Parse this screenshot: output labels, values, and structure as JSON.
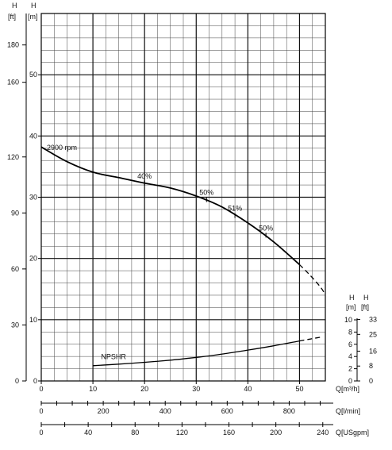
{
  "chart_data": {
    "type": "line",
    "speed_label": "2900 rpm",
    "npsh_label": "NPSHR",
    "axes": {
      "x_primary": {
        "unit": "Q[m³/h]",
        "range": [
          0,
          55
        ],
        "ticks": [
          "0",
          "10",
          "20",
          "30",
          "40",
          "50"
        ]
      },
      "x_lpm": {
        "unit": "Q[l/min]",
        "ticks": [
          "0",
          "200",
          "400",
          "600",
          "800"
        ]
      },
      "x_usgpm": {
        "unit": "Q[USgpm]",
        "ticks": [
          "0",
          "40",
          "80",
          "120",
          "160",
          "200",
          "240"
        ]
      },
      "y_head_m": {
        "unit_top": "H",
        "unit_bottom": "[m]",
        "range": [
          0,
          60
        ],
        "ticks": [
          "0",
          "10",
          "20",
          "30",
          "40",
          "50"
        ]
      },
      "y_head_ft": {
        "unit_top": "H",
        "unit_bottom": "[ft]",
        "ticks": [
          "0",
          "30",
          "60",
          "90",
          "120",
          "160",
          "180"
        ]
      },
      "y_npsh_m": {
        "unit_top": "H",
        "unit_bottom": "[m]",
        "range": [
          0,
          10
        ],
        "ticks": [
          "0",
          "2",
          "4",
          "6",
          "8",
          "10"
        ]
      },
      "y_npsh_ft": {
        "unit_top": "H",
        "unit_bottom": "[ft]",
        "ticks": [
          "0",
          "8",
          "16",
          "25",
          "33"
        ]
      }
    },
    "series": [
      {
        "role": "head",
        "x": [
          0,
          5,
          10,
          15,
          20,
          25,
          30,
          35,
          40,
          45,
          50
        ],
        "y": [
          38.2,
          35.8,
          34.1,
          33.2,
          32.3,
          31.5,
          30.2,
          28.4,
          25.8,
          22.7,
          19.0
        ]
      },
      {
        "role": "head-extrapolated",
        "style": "dashed",
        "x": [
          50,
          52,
          54,
          55
        ],
        "y": [
          19.0,
          17.3,
          15.4,
          14.1
        ]
      },
      {
        "role": "npshr",
        "x": [
          10,
          15,
          20,
          25,
          30,
          35,
          40,
          45,
          50
        ],
        "y": [
          2.5,
          2.75,
          3.05,
          3.4,
          3.85,
          4.4,
          5.05,
          5.75,
          6.55
        ]
      },
      {
        "role": "npshr-extrapolated",
        "style": "dashed",
        "x": [
          50,
          52,
          54
        ],
        "y": [
          6.55,
          6.85,
          7.15
        ]
      }
    ],
    "efficiency_labels": [
      {
        "text": "40%",
        "x": 20,
        "y": 32.3
      },
      {
        "text": "50%",
        "x": 32,
        "y": 29.6
      },
      {
        "text": "51%",
        "x": 37.5,
        "y": 27.0
      },
      {
        "text": "50%",
        "x": 43.5,
        "y": 23.8
      }
    ],
    "grid": true
  }
}
